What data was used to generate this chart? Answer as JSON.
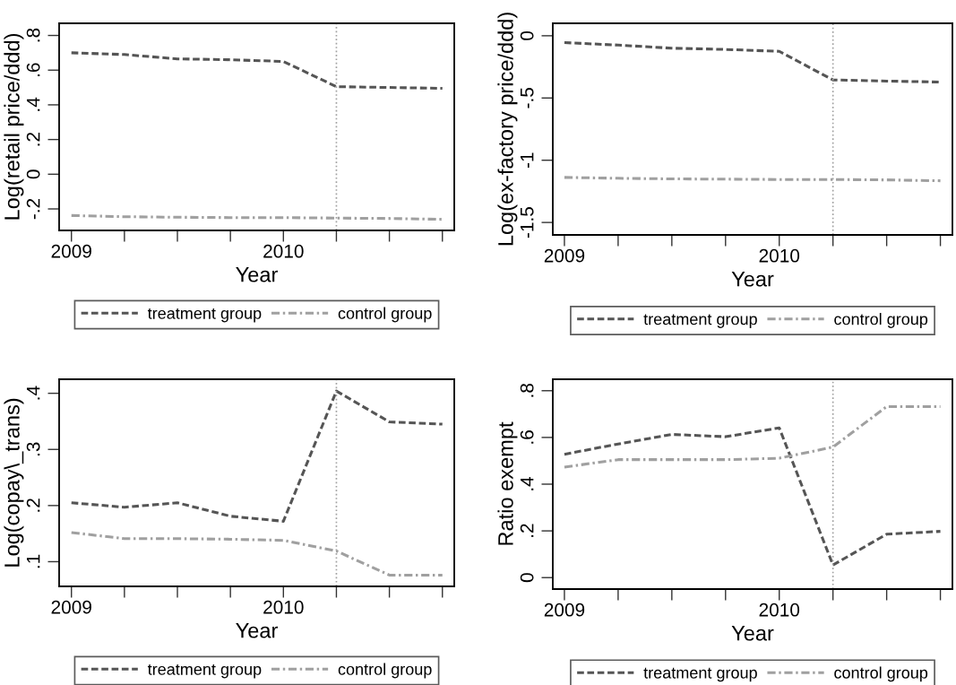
{
  "chart_data": [
    {
      "type": "line",
      "xlabel": "Year",
      "ylabel": "Log(retail price/ddd)",
      "x": [
        2009,
        2009.25,
        2009.5,
        2009.75,
        2010,
        2010.25,
        2010.5,
        2010.75
      ],
      "xlim": [
        2008.942,
        2010.806
      ],
      "xticks": [
        2009,
        {
          "value": 2009.25,
          "label": null
        },
        {
          "value": 2009.5,
          "label": null
        },
        {
          "value": 2009.75,
          "label": null
        },
        2010,
        {
          "value": 2010.25,
          "label": null
        },
        {
          "value": 2010.5,
          "label": null
        },
        {
          "value": 2010.75,
          "label": null
        }
      ],
      "ylim": [
        -0.324,
        0.87
      ],
      "yticks": [
        {
          "value": -0.2,
          "label": "-.2"
        },
        0,
        {
          "value": 0.2,
          "label": ".2"
        },
        {
          "value": 0.4,
          "label": ".4"
        },
        {
          "value": 0.6,
          "label": ".6"
        },
        {
          "value": 0.8,
          "label": ".8"
        }
      ],
      "grid": false,
      "legend": "bottom",
      "ref_lines": [
        {
          "axis": "x",
          "value": 2010.25,
          "color": "#a0a0a0",
          "line_style": "dotted"
        }
      ],
      "series": [
        {
          "name": "treatment group",
          "color": "#555555",
          "line_style": "dashed",
          "values": [
            0.7,
            0.69,
            0.665,
            0.66,
            0.65,
            0.505,
            0.5,
            0.495
          ]
        },
        {
          "name": "control group",
          "color": "#a0a0a0",
          "line_style": "dashdot",
          "values": [
            -0.238,
            -0.245,
            -0.248,
            -0.25,
            -0.25,
            -0.253,
            -0.255,
            -0.26
          ]
        }
      ]
    },
    {
      "type": "line",
      "xlabel": "Year",
      "ylabel": "Log(ex-factory price/ddd)",
      "x": [
        2009,
        2009.25,
        2009.5,
        2009.75,
        2010,
        2010.25,
        2010.5,
        2010.75
      ],
      "xlim": [
        2008.946,
        2010.806
      ],
      "xticks": [
        2009,
        {
          "value": 2009.25,
          "label": null
        },
        {
          "value": 2009.5,
          "label": null
        },
        {
          "value": 2009.75,
          "label": null
        },
        2010,
        {
          "value": 2010.25,
          "label": null
        },
        {
          "value": 2010.5,
          "label": null
        },
        {
          "value": 2010.75,
          "label": null
        }
      ],
      "ylim": [
        -1.6,
        0.1
      ],
      "yticks": [
        -1.5,
        -1,
        {
          "value": -0.5,
          "label": "-.5"
        },
        0
      ],
      "grid": false,
      "legend": "bottom",
      "ref_lines": [
        {
          "axis": "x",
          "value": 2010.25,
          "color": "#a0a0a0",
          "line_style": "dotted"
        }
      ],
      "series": [
        {
          "name": "treatment group",
          "color": "#555555",
          "line_style": "dashed",
          "values": [
            -0.055,
            -0.075,
            -0.1,
            -0.11,
            -0.125,
            -0.355,
            -0.364,
            -0.372
          ]
        },
        {
          "name": "control group",
          "color": "#a0a0a0",
          "line_style": "dashdot",
          "values": [
            -1.138,
            -1.145,
            -1.15,
            -1.152,
            -1.155,
            -1.155,
            -1.158,
            -1.165
          ]
        }
      ]
    },
    {
      "type": "line",
      "xlabel": "Year",
      "ylabel": "Log(copay\\_trans)",
      "x": [
        2009,
        2009.25,
        2009.5,
        2009.75,
        2010,
        2010.25,
        2010.5,
        2010.75
      ],
      "xlim": [
        2008.942,
        2010.806
      ],
      "xticks": [
        2009,
        {
          "value": 2009.25,
          "label": null
        },
        {
          "value": 2009.5,
          "label": null
        },
        {
          "value": 2009.75,
          "label": null
        },
        2010,
        {
          "value": 2010.25,
          "label": null
        },
        {
          "value": 2010.5,
          "label": null
        },
        {
          "value": 2010.75,
          "label": null
        }
      ],
      "ylim": [
        0.056,
        0.425
      ],
      "yticks": [
        {
          "value": 0.1,
          "label": ".1"
        },
        {
          "value": 0.2,
          "label": ".2"
        },
        {
          "value": 0.3,
          "label": ".3"
        },
        {
          "value": 0.4,
          "label": ".4"
        }
      ],
      "grid": false,
      "legend": "bottom",
      "ref_lines": [
        {
          "axis": "x",
          "value": 2010.25,
          "color": "#a0a0a0",
          "line_style": "dotted"
        }
      ],
      "series": [
        {
          "name": "treatment group",
          "color": "#555555",
          "line_style": "dashed",
          "values": [
            0.205,
            0.197,
            0.205,
            0.181,
            0.172,
            0.404,
            0.349,
            0.345
          ]
        },
        {
          "name": "control group",
          "color": "#a0a0a0",
          "line_style": "dashdot",
          "values": [
            0.152,
            0.141,
            0.141,
            0.14,
            0.138,
            0.119,
            0.076,
            0.076
          ]
        }
      ]
    },
    {
      "type": "line",
      "xlabel": "Year",
      "ylabel": "Ratio exempt",
      "x": [
        2009,
        2009.25,
        2009.5,
        2009.75,
        2010,
        2010.25,
        2010.5,
        2010.75
      ],
      "xlim": [
        2008.946,
        2010.806
      ],
      "xticks": [
        2009,
        {
          "value": 2009.25,
          "label": null
        },
        {
          "value": 2009.5,
          "label": null
        },
        {
          "value": 2009.75,
          "label": null
        },
        2010,
        {
          "value": 2010.25,
          "label": null
        },
        {
          "value": 2010.5,
          "label": null
        },
        {
          "value": 2010.75,
          "label": null
        }
      ],
      "ylim": [
        -0.049,
        0.849
      ],
      "yticks": [
        0,
        {
          "value": 0.2,
          "label": ".2"
        },
        {
          "value": 0.4,
          "label": ".4"
        },
        {
          "value": 0.6,
          "label": ".6"
        },
        {
          "value": 0.8,
          "label": ".8"
        }
      ],
      "grid": false,
      "legend": "bottom",
      "ref_lines": [
        {
          "axis": "x",
          "value": 2010.25,
          "color": "#a0a0a0",
          "line_style": "dotted"
        }
      ],
      "series": [
        {
          "name": "treatment group",
          "color": "#555555",
          "line_style": "dashed",
          "values": [
            0.528,
            0.572,
            0.613,
            0.603,
            0.641,
            0.054,
            0.186,
            0.198
          ]
        },
        {
          "name": "control group",
          "color": "#a0a0a0",
          "line_style": "dashdot",
          "values": [
            0.473,
            0.505,
            0.505,
            0.505,
            0.511,
            0.559,
            0.732,
            0.732
          ]
        }
      ]
    }
  ]
}
